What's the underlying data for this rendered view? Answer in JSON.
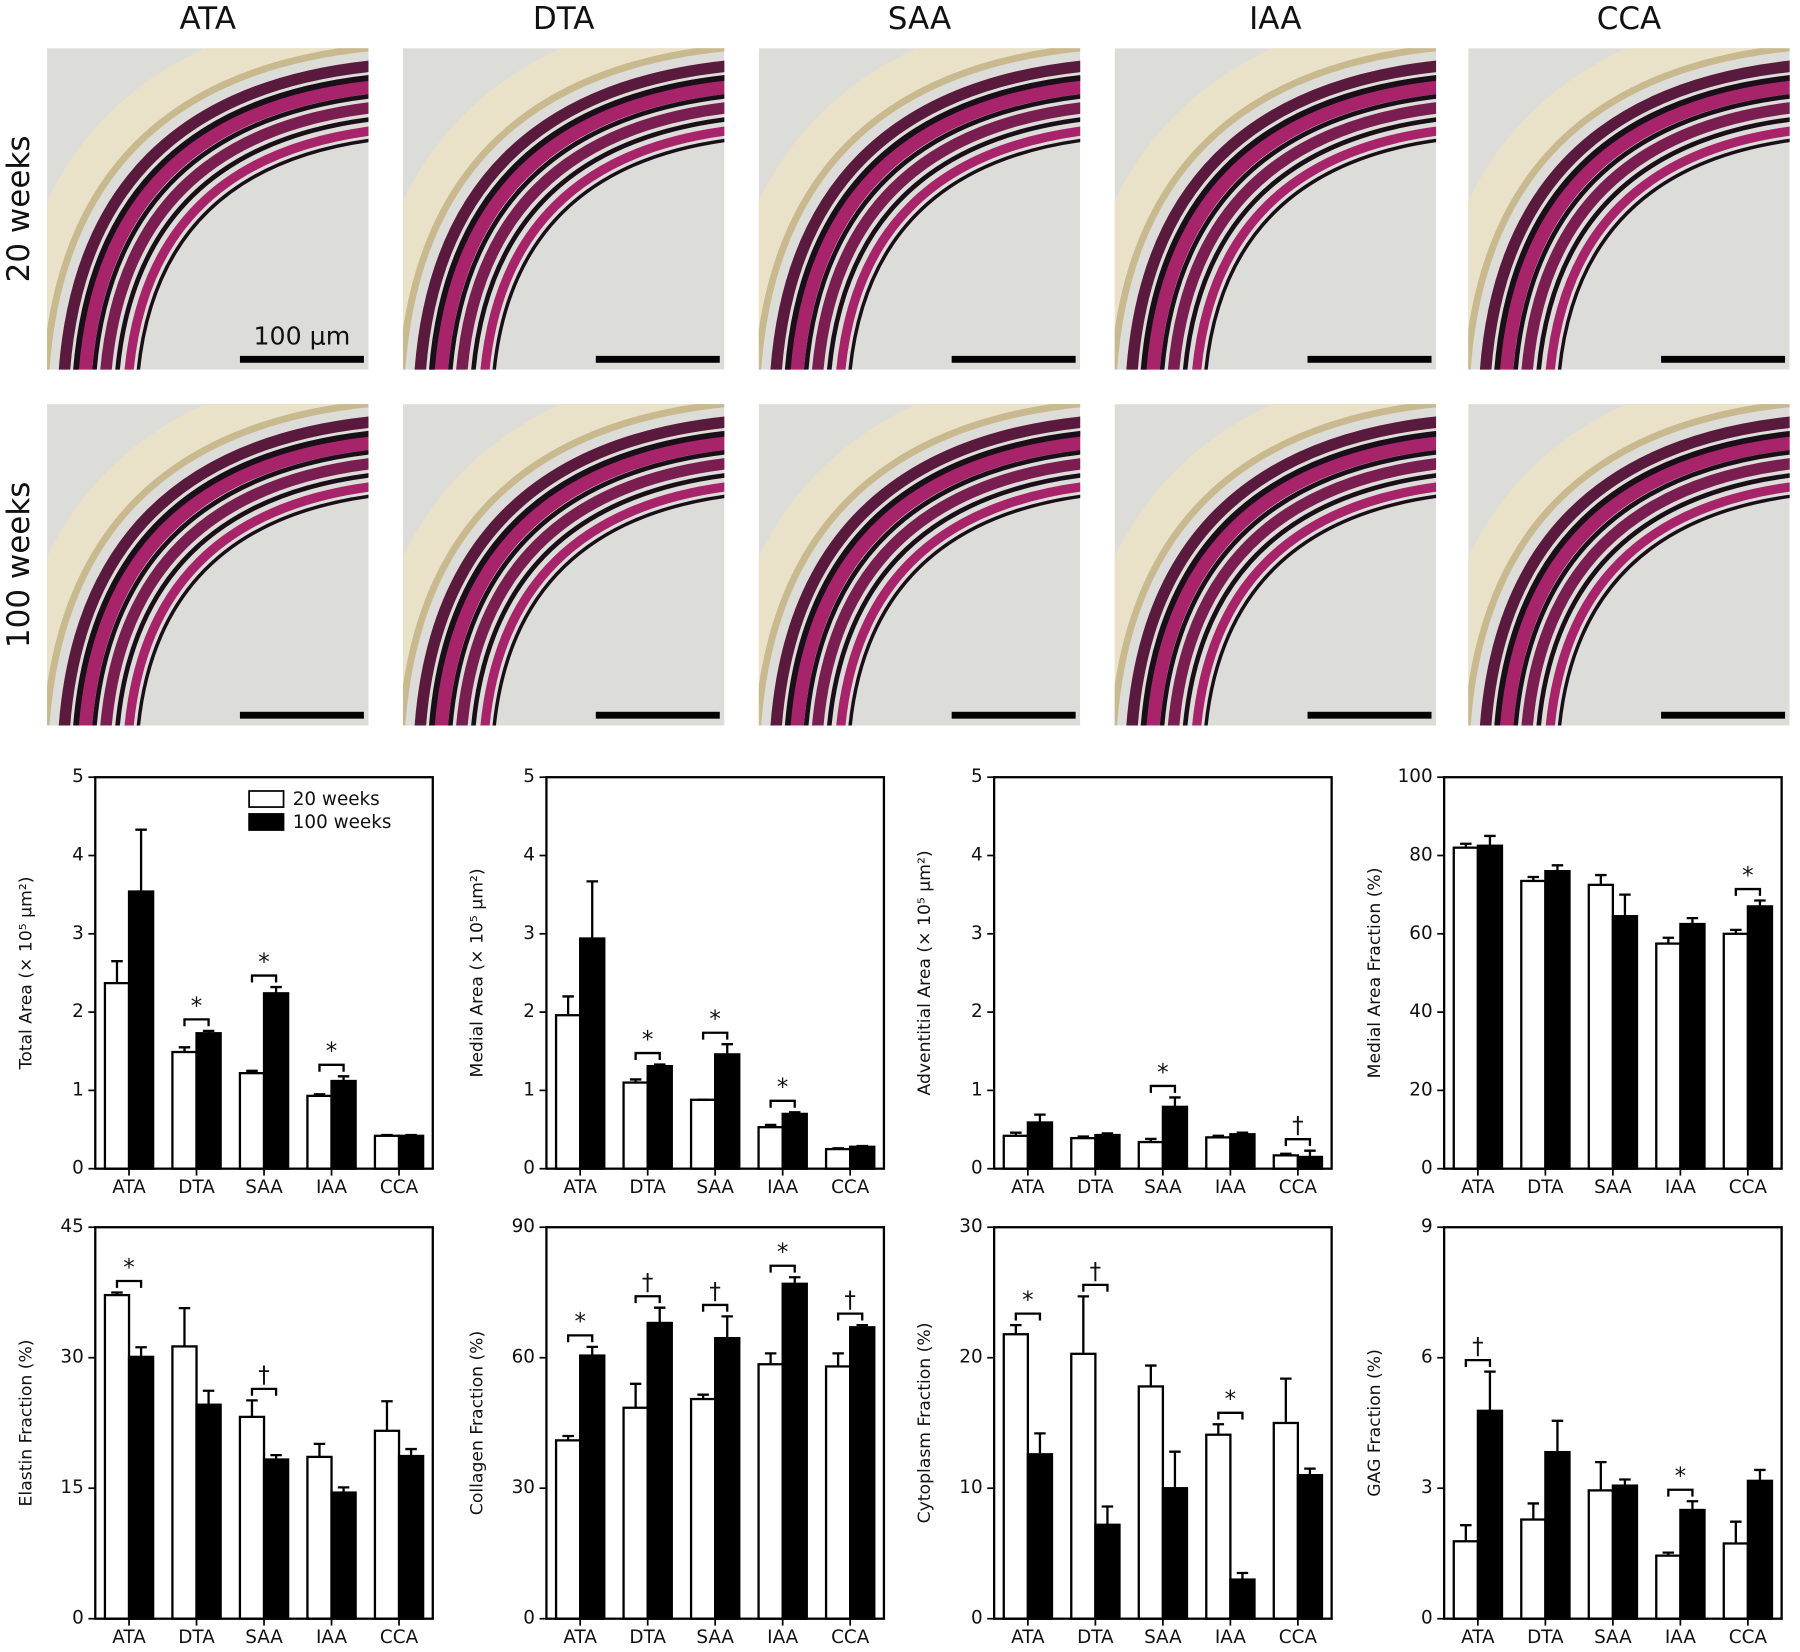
{
  "micrographs": {
    "columns": [
      "ATA",
      "DTA",
      "SAA",
      "IAA",
      "CCA"
    ],
    "rows": [
      "20 weeks",
      "100 weeks"
    ],
    "scale_bar_label": "100 μm"
  },
  "chart_data": [
    {
      "type": "bar",
      "ylabel": "Total Area (× 10⁵ μm²)",
      "categories": [
        "ATA",
        "DTA",
        "SAA",
        "IAA",
        "CCA"
      ],
      "ylim": [
        0,
        5
      ],
      "yticks": [
        0,
        1,
        2,
        3,
        4,
        5
      ],
      "legend": "upper right",
      "series": [
        {
          "name": "20 weeks",
          "color": "#ffffff",
          "values": [
            2.37,
            1.49,
            1.22,
            0.93,
            0.42
          ],
          "errors": [
            0.28,
            0.06,
            0.03,
            0.02,
            0.01
          ]
        },
        {
          "name": "100 weeks",
          "color": "#000000",
          "values": [
            3.54,
            1.73,
            2.24,
            1.12,
            0.42
          ],
          "errors": [
            0.79,
            0.03,
            0.08,
            0.06,
            0.01
          ]
        }
      ],
      "significance": [
        null,
        "*",
        "*",
        "*",
        null
      ]
    },
    {
      "type": "bar",
      "ylabel": "Medial Area (× 10⁵ μm²)",
      "categories": [
        "ATA",
        "DTA",
        "SAA",
        "IAA",
        "CCA"
      ],
      "ylim": [
        0,
        5
      ],
      "yticks": [
        0,
        1,
        2,
        3,
        4,
        5
      ],
      "series": [
        {
          "color": "#ffffff",
          "values": [
            1.96,
            1.1,
            0.88,
            0.53,
            0.25
          ],
          "errors": [
            0.24,
            0.04,
            0,
            0.03,
            0.01
          ]
        },
        {
          "color": "#000000",
          "values": [
            2.94,
            1.31,
            1.46,
            0.7,
            0.28
          ],
          "errors": [
            0.73,
            0.02,
            0.13,
            0.02,
            0.01
          ]
        }
      ],
      "significance": [
        null,
        "*",
        "*",
        "*",
        null
      ]
    },
    {
      "type": "bar",
      "ylabel": "Adventitial Area (× 10⁵ μm²)",
      "categories": [
        "ATA",
        "DTA",
        "SAA",
        "IAA",
        "CCA"
      ],
      "ylim": [
        0,
        5
      ],
      "yticks": [
        0,
        1,
        2,
        3,
        4,
        5
      ],
      "series": [
        {
          "color": "#ffffff",
          "values": [
            0.42,
            0.39,
            0.34,
            0.4,
            0.17
          ],
          "errors": [
            0.04,
            0.02,
            0.04,
            0.02,
            0.02
          ]
        },
        {
          "color": "#000000",
          "values": [
            0.59,
            0.43,
            0.79,
            0.44,
            0.15
          ],
          "errors": [
            0.1,
            0.02,
            0.12,
            0.02,
            0.08
          ]
        }
      ],
      "significance": [
        null,
        null,
        "*",
        null,
        "†"
      ]
    },
    {
      "type": "bar",
      "ylabel": "Medial Area Fraction (%)",
      "categories": [
        "ATA",
        "DTA",
        "SAA",
        "IAA",
        "CCA"
      ],
      "ylim": [
        0,
        100
      ],
      "yticks": [
        0,
        20,
        40,
        60,
        80,
        100
      ],
      "series": [
        {
          "color": "#ffffff",
          "values": [
            82,
            73.5,
            72.5,
            57.5,
            60
          ],
          "errors": [
            1,
            1,
            2.5,
            1.5,
            1
          ]
        },
        {
          "color": "#000000",
          "values": [
            82.5,
            76,
            64.5,
            62.5,
            67
          ],
          "errors": [
            2.5,
            1.5,
            5.5,
            1.5,
            1.5
          ]
        }
      ],
      "significance": [
        null,
        null,
        null,
        null,
        "*"
      ]
    },
    {
      "type": "bar",
      "ylabel": "Elastin Fraction (%)",
      "categories": [
        "ATA",
        "DTA",
        "SAA",
        "IAA",
        "CCA"
      ],
      "ylim": [
        0,
        45
      ],
      "yticks": [
        0,
        15,
        30,
        45
      ],
      "series": [
        {
          "color": "#ffffff",
          "values": [
            37.2,
            31.3,
            23.2,
            18.6,
            21.6
          ],
          "errors": [
            0.3,
            4.4,
            1.9,
            1.5,
            3.4
          ]
        },
        {
          "color": "#000000",
          "values": [
            30.1,
            24.6,
            18.3,
            14.5,
            18.7
          ],
          "errors": [
            1.1,
            1.6,
            0.5,
            0.6,
            0.8
          ]
        }
      ],
      "significance": [
        "*",
        null,
        "†",
        null,
        null
      ]
    },
    {
      "type": "bar",
      "ylabel": "Collagen Fraction (%)",
      "categories": [
        "ATA",
        "DTA",
        "SAA",
        "IAA",
        "CCA"
      ],
      "ylim": [
        0,
        90
      ],
      "yticks": [
        0,
        30,
        60,
        90
      ],
      "series": [
        {
          "color": "#ffffff",
          "values": [
            41,
            48.5,
            50.5,
            58.5,
            58
          ],
          "errors": [
            1,
            5.5,
            1,
            2.5,
            3
          ]
        },
        {
          "color": "#000000",
          "values": [
            60.5,
            68,
            64.5,
            77,
            67
          ],
          "errors": [
            2,
            3.5,
            5,
            1.5,
            0.5
          ]
        }
      ],
      "significance": [
        "*",
        "†",
        "†",
        "*",
        "†"
      ]
    },
    {
      "type": "bar",
      "ylabel": "Cytoplasm Fraction (%)",
      "categories": [
        "ATA",
        "DTA",
        "SAA",
        "IAA",
        "CCA"
      ],
      "ylim": [
        0,
        30
      ],
      "yticks": [
        0,
        10,
        20,
        30
      ],
      "series": [
        {
          "color": "#ffffff",
          "values": [
            21.8,
            20.3,
            17.8,
            14.1,
            15
          ],
          "errors": [
            0.7,
            4.4,
            1.6,
            0.8,
            3.4
          ]
        },
        {
          "color": "#000000",
          "values": [
            12.6,
            7.2,
            10,
            3,
            11
          ],
          "errors": [
            1.6,
            1.4,
            2.8,
            0.5,
            0.5
          ]
        }
      ],
      "significance": [
        "*",
        "†",
        null,
        "*",
        null
      ]
    },
    {
      "type": "bar",
      "ylabel": "GAG Fraction (%)",
      "categories": [
        "ATA",
        "DTA",
        "SAA",
        "IAA",
        "CCA"
      ],
      "ylim": [
        0,
        9
      ],
      "yticks": [
        0,
        3,
        6,
        9
      ],
      "series": [
        {
          "color": "#ffffff",
          "values": [
            1.78,
            2.28,
            2.95,
            1.45,
            1.73
          ],
          "errors": [
            0.37,
            0.37,
            0.65,
            0.07,
            0.5
          ]
        },
        {
          "color": "#000000",
          "values": [
            4.78,
            3.83,
            3.06,
            2.5,
            3.17
          ],
          "errors": [
            0.9,
            0.72,
            0.14,
            0.2,
            0.25
          ]
        }
      ],
      "significance": [
        "†",
        null,
        null,
        "*",
        null
      ]
    }
  ]
}
